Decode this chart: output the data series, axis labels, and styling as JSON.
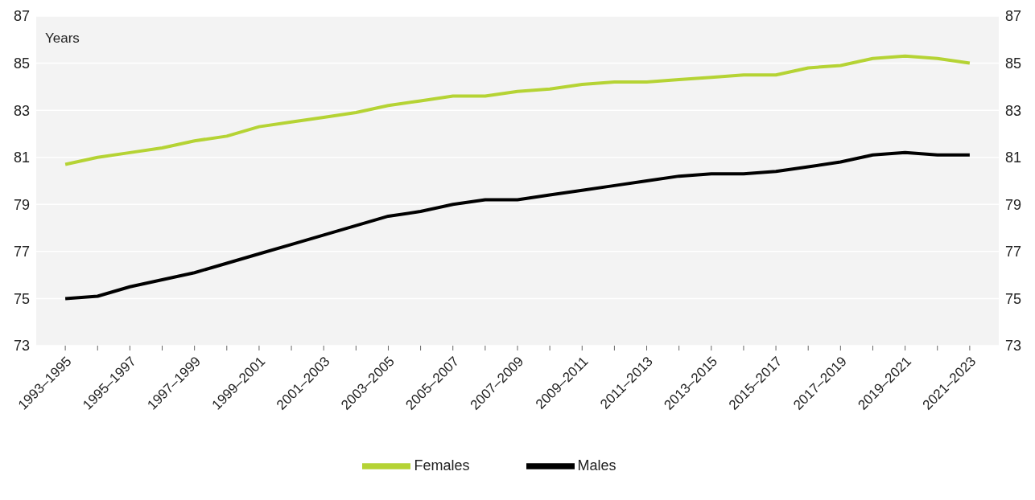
{
  "chart_data": {
    "type": "line",
    "ylabel": "Years",
    "categories": [
      "1993–1995",
      null,
      "1995–1997",
      null,
      "1997–1999",
      null,
      "1999–2001",
      null,
      "2001–2003",
      null,
      "2003–2005",
      null,
      "2005–2007",
      null,
      "2007–2009",
      null,
      "2009–2011",
      null,
      "2011–2013",
      null,
      "2013–2015",
      null,
      "2015–2017",
      null,
      "2017–2019",
      null,
      "2019–2021",
      null,
      "2021–2023"
    ],
    "series": [
      {
        "name": "Females",
        "color": "#b5d334",
        "values": [
          80.7,
          81.0,
          81.2,
          81.4,
          81.7,
          81.9,
          82.3,
          82.5,
          82.7,
          82.9,
          83.2,
          83.4,
          83.6,
          83.6,
          83.8,
          83.9,
          84.1,
          84.2,
          84.2,
          84.3,
          84.4,
          84.5,
          84.5,
          84.8,
          84.9,
          85.2,
          85.3,
          85.2,
          85.0
        ]
      },
      {
        "name": "Males",
        "color": "#000000",
        "values": [
          75.0,
          75.1,
          75.5,
          75.8,
          76.1,
          76.5,
          76.9,
          77.3,
          77.7,
          78.1,
          78.5,
          78.7,
          79.0,
          79.2,
          79.2,
          79.4,
          79.6,
          79.8,
          80.0,
          80.2,
          80.3,
          80.3,
          80.4,
          80.6,
          80.8,
          81.1,
          81.2,
          81.1,
          81.1
        ]
      }
    ],
    "ylim": [
      73,
      87
    ],
    "yticks": [
      73,
      75,
      77,
      79,
      81,
      83,
      85,
      87
    ],
    "y2lim": [
      73,
      87
    ],
    "y2ticks": [
      73,
      75,
      77,
      79,
      81,
      83,
      85,
      87
    ],
    "grid": "y",
    "legend": "bottom",
    "marker": "none",
    "line_style": "solid"
  }
}
